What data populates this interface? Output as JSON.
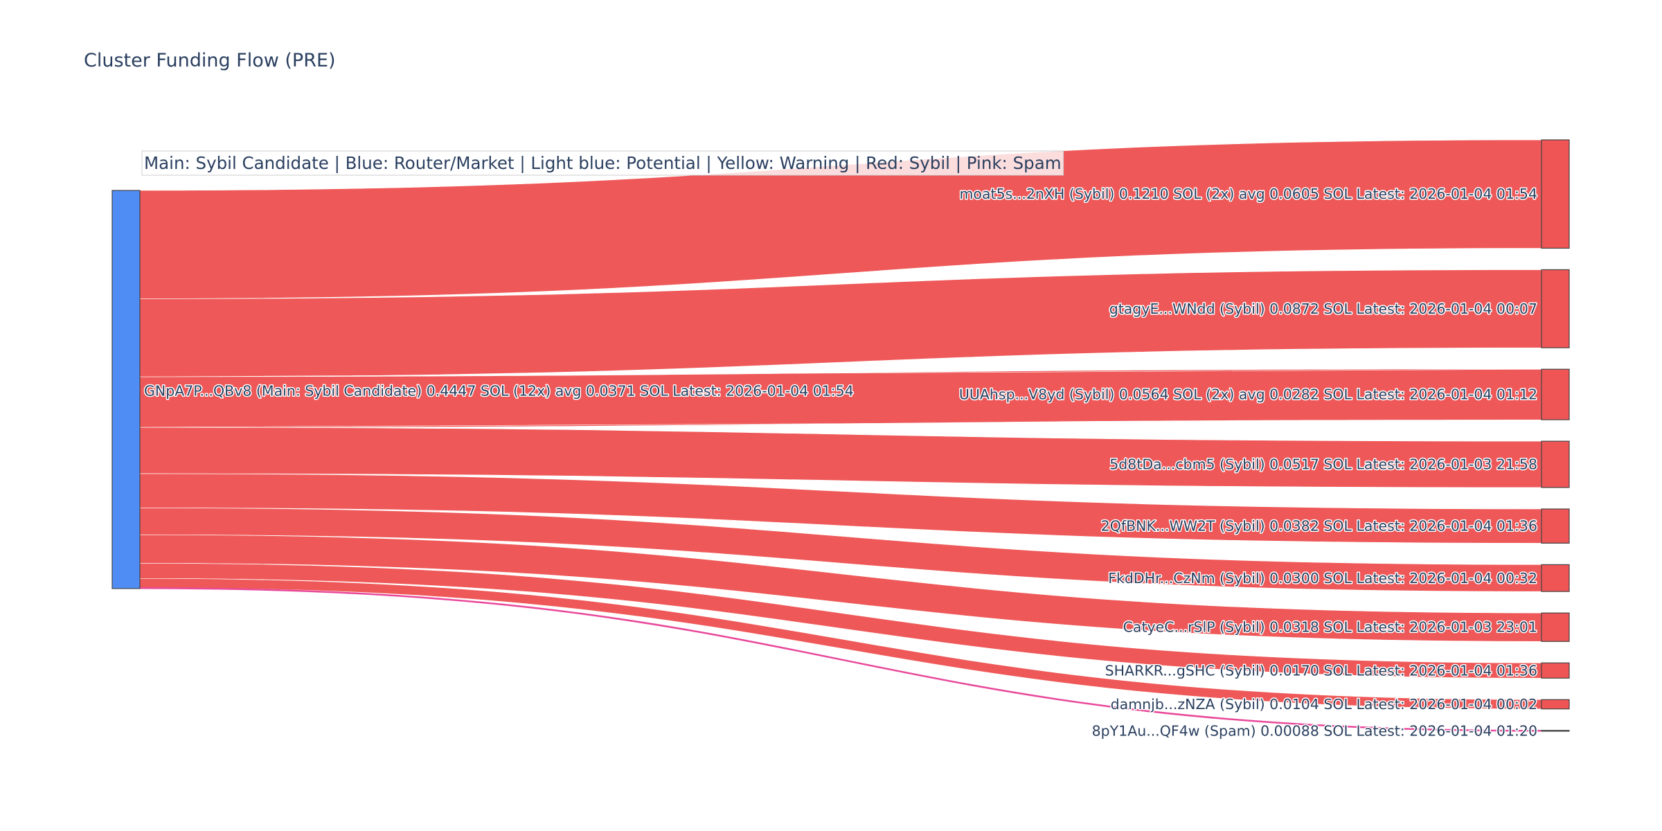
{
  "chart_data": {
    "type": "sankey",
    "title": "Cluster Funding Flow (PRE)",
    "legend_note": "Main: Sybil Candidate  |  Blue: Router/Market | Light blue: Potential | Yellow: Warning | Red: Sybil | Pink: Spam",
    "colors": {
      "main_node": "#4f8df5",
      "sybil": "#ef5555",
      "spam": "#e9489a",
      "node_border": "#444444",
      "text": "#2a3f5f"
    },
    "source": {
      "id": "main",
      "label": "GNpA7P...QBv8 (Main: Sybil Candidate) 0.4447 SOL (12x) avg 0.0371 SOL Latest: 2026-01-04 01:54",
      "value": 0.4447
    },
    "targets": [
      {
        "id": "moat",
        "label": "moat5s...2nXH (Sybil) 0.1210 SOL (2x) avg 0.0605 SOL Latest: 2026-01-04 01:54",
        "value": 0.121,
        "category": "sybil"
      },
      {
        "id": "gtagy",
        "label": "gtagyE...WNdd (Sybil) 0.0872 SOL Latest: 2026-01-04 00:07",
        "value": 0.0872,
        "category": "sybil"
      },
      {
        "id": "uuahsp",
        "label": "UUAhsp...V8yd (Sybil) 0.0564 SOL (2x) avg 0.0282 SOL Latest: 2026-01-04 01:12",
        "value": 0.0564,
        "category": "sybil"
      },
      {
        "id": "5d8t",
        "label": "5d8tDa...cbm5 (Sybil) 0.0517 SOL Latest: 2026-01-03 21:58",
        "value": 0.0517,
        "category": "sybil"
      },
      {
        "id": "2qfb",
        "label": "2QfBNK...WW2T (Sybil) 0.0382 SOL Latest: 2026-01-04 01:36",
        "value": 0.0382,
        "category": "sybil"
      },
      {
        "id": "fkdd",
        "label": "FkdDHr...CzNm (Sybil) 0.0300 SOL Latest: 2026-01-04 00:32",
        "value": 0.03,
        "category": "sybil"
      },
      {
        "id": "catye",
        "label": "CatyeC...rSlP (Sybil) 0.0318 SOL Latest: 2026-01-03 23:01",
        "value": 0.0318,
        "category": "sybil"
      },
      {
        "id": "shark",
        "label": "SHARKR...gSHC (Sybil) 0.0170 SOL Latest: 2026-01-04 01:36",
        "value": 0.017,
        "category": "sybil"
      },
      {
        "id": "damnjb",
        "label": "damnjb...zNZA (Sybil) 0.0104 SOL Latest: 2026-01-04 00:02",
        "value": 0.0104,
        "category": "sybil"
      },
      {
        "id": "8py1",
        "label": "8pY1Au...QF4w (Spam) 0.00088 SOL Latest: 2026-01-04 01:20",
        "value": 0.00088,
        "category": "spam"
      }
    ]
  }
}
